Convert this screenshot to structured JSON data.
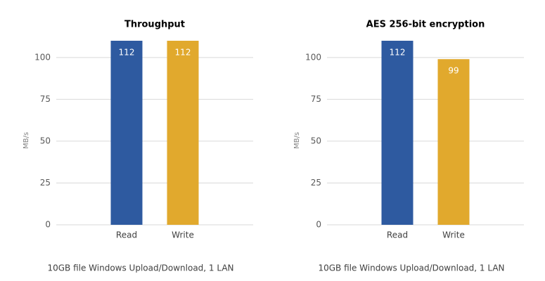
{
  "chart_data": [
    {
      "type": "bar",
      "title": "Throughput",
      "y_label": "MB/s",
      "note": "10GB file Windows Upload/Download, 1 LAN",
      "categories": [
        "Read",
        "Write"
      ],
      "values": [
        112,
        112
      ],
      "colors": [
        "#2e5aa0",
        "#e1a92d"
      ],
      "ylim": [
        0,
        110
      ],
      "yticks": [
        0,
        25,
        50,
        75,
        100
      ],
      "grid": true
    },
    {
      "type": "bar",
      "title": "AES 256-bit encryption",
      "y_label": "MB/s",
      "note": "10GB file Windows Upload/Download, 1 LAN",
      "categories": [
        "Read",
        "Write"
      ],
      "values": [
        112,
        99
      ],
      "colors": [
        "#2e5aa0",
        "#e1a92d"
      ],
      "ylim": [
        0,
        110
      ],
      "yticks": [
        0,
        25,
        50,
        75,
        100
      ],
      "grid": true
    }
  ]
}
